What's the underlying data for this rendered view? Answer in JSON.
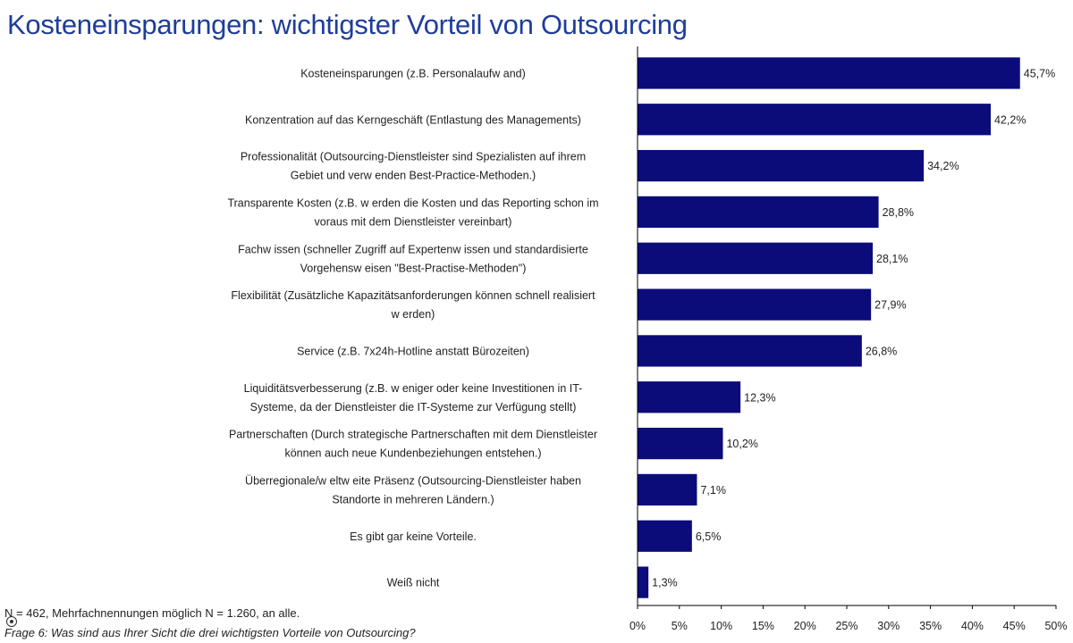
{
  "header": {
    "title": "Kosteneinsparungen: wichtigster Vorteil von Outsourcing"
  },
  "footer": {
    "note": "N = 462, Mehrfachnennungen möglich N = 1.260, an alle.",
    "question": "Frage 6: Was sind aus Ihrer Sicht die drei wichtigsten Vorteile von Outsourcing?"
  },
  "colors": {
    "bar": "#0b0b7a",
    "title": "#1f3d99"
  },
  "chart_data": {
    "type": "bar",
    "orientation": "horizontal",
    "title": "Kosteneinsparungen: wichtigster Vorteil von Outsourcing",
    "xlabel": "",
    "ylabel": "",
    "xlim": [
      0,
      50
    ],
    "x_ticks": [
      0,
      5,
      10,
      15,
      20,
      25,
      30,
      35,
      40,
      45,
      50
    ],
    "x_tick_labels": [
      "0%",
      "5%",
      "10%",
      "15%",
      "20%",
      "25%",
      "30%",
      "35%",
      "40%",
      "45%",
      "50%"
    ],
    "grid": false,
    "legend": "none",
    "categories": [
      [
        "Kosteneinsparungen (z.B. Personalaufw and)"
      ],
      [
        "Konzentration auf das Kerngeschäft (Entlastung des Managements)"
      ],
      [
        "Professionalität (Outsourcing-Dienstleister sind Spezialisten auf ihrem",
        "Gebiet und verw enden Best-Practice-Methoden.)"
      ],
      [
        "Transparente Kosten (z.B. w erden die Kosten und das Reporting schon im",
        "voraus mit dem Dienstleister vereinbart)"
      ],
      [
        "Fachw issen (schneller Zugriff auf Expertenw issen und standardisierte",
        "Vorgehensw eisen \"Best-Practise-Methoden\")"
      ],
      [
        "Flexibilität (Zusätzliche Kapazitätsanforderungen können schnell realisiert",
        "w erden)"
      ],
      [
        "Service (z.B. 7x24h-Hotline anstatt Bürozeiten)"
      ],
      [
        "Liquiditätsverbesserung (z.B. w eniger oder keine Investitionen in IT-",
        "Systeme, da der Dienstleister die IT-Systeme zur Verfügung stellt)"
      ],
      [
        "Partnerschaften (Durch strategische Partnerschaften mit dem Dienstleister",
        "können auch neue Kundenbeziehungen entstehen.)"
      ],
      [
        "Überregionale/w eltw eite Präsenz (Outsourcing-Dienstleister haben",
        "Standorte in mehreren Ländern.)"
      ],
      [
        "Es gibt gar keine Vorteile."
      ],
      [
        "Weiß nicht"
      ]
    ],
    "values": [
      45.7,
      42.2,
      34.2,
      28.8,
      28.1,
      27.9,
      26.8,
      12.3,
      10.2,
      7.1,
      6.5,
      1.3
    ],
    "value_labels": [
      "45,7%",
      "42,2%",
      "34,2%",
      "28,8%",
      "28,1%",
      "27,9%",
      "26,8%",
      "12,3%",
      "10,2%",
      "7,1%",
      "6,5%",
      "1,3%"
    ]
  }
}
